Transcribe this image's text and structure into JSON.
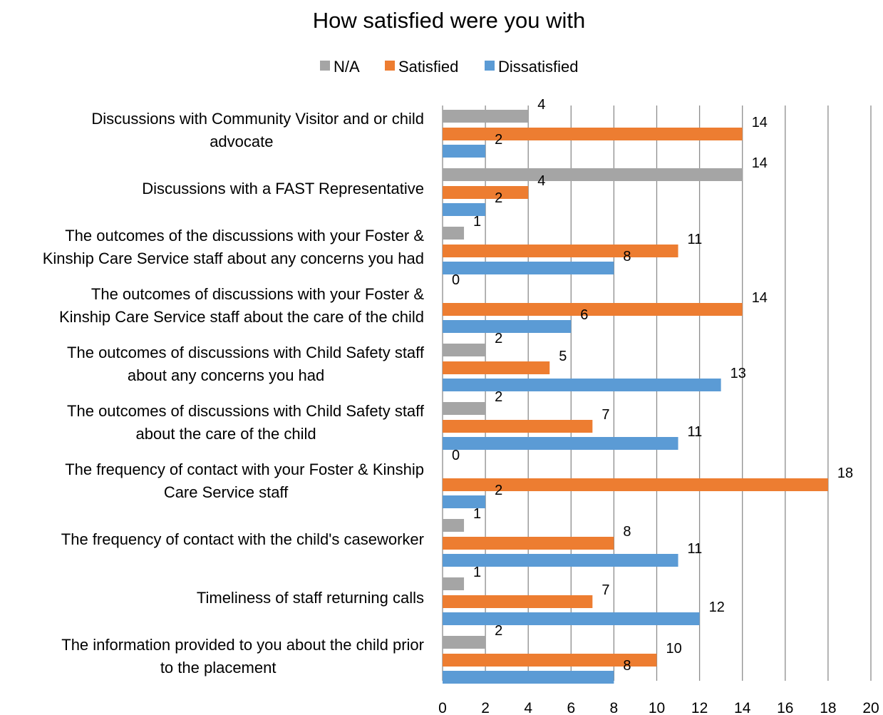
{
  "chart_data": {
    "type": "bar",
    "orientation": "horizontal",
    "title": "How satisfied were you with",
    "xlim": [
      0,
      20
    ],
    "x_ticks": [
      "0",
      "2",
      "4",
      "6",
      "8",
      "10",
      "12",
      "14",
      "16",
      "18",
      "20"
    ],
    "grid": true,
    "legend": "top",
    "legend_order": [
      "N/A",
      "Satisfied",
      "Dissatisfied"
    ],
    "categories": [
      [
        "Discussions with Community Visitor and or child",
        "advocate"
      ],
      [
        "Discussions with a FAST Representative"
      ],
      [
        "The outcomes of the discussions with your Foster &",
        "Kinship Care Service staff about any concerns you had"
      ],
      [
        "The outcomes of discussions with your Foster &",
        "Kinship Care Service staff about the care of the child"
      ],
      [
        "The outcomes of discussions with Child Safety staff",
        "about any concerns you had"
      ],
      [
        "The outcomes of discussions with Child Safety staff",
        "about the care of the child"
      ],
      [
        "The frequency of contact with your Foster & Kinship",
        "Care Service staff"
      ],
      [
        "The frequency of contact with the child's caseworker"
      ],
      [
        "Timeliness of staff returning calls"
      ],
      [
        "The information provided to you about the child prior",
        "to the placement"
      ]
    ],
    "series": [
      {
        "name": "N/A",
        "color": "#a5a5a5",
        "values": [
          4,
          14,
          1,
          0,
          2,
          2,
          0,
          1,
          1,
          2
        ]
      },
      {
        "name": "Satisfied",
        "color": "#ed7d31",
        "values": [
          14,
          4,
          11,
          14,
          5,
          7,
          18,
          8,
          7,
          10
        ]
      },
      {
        "name": "Dissatisfied",
        "color": "#5b9bd5",
        "values": [
          2,
          2,
          8,
          6,
          13,
          11,
          2,
          11,
          12,
          8
        ]
      }
    ]
  }
}
